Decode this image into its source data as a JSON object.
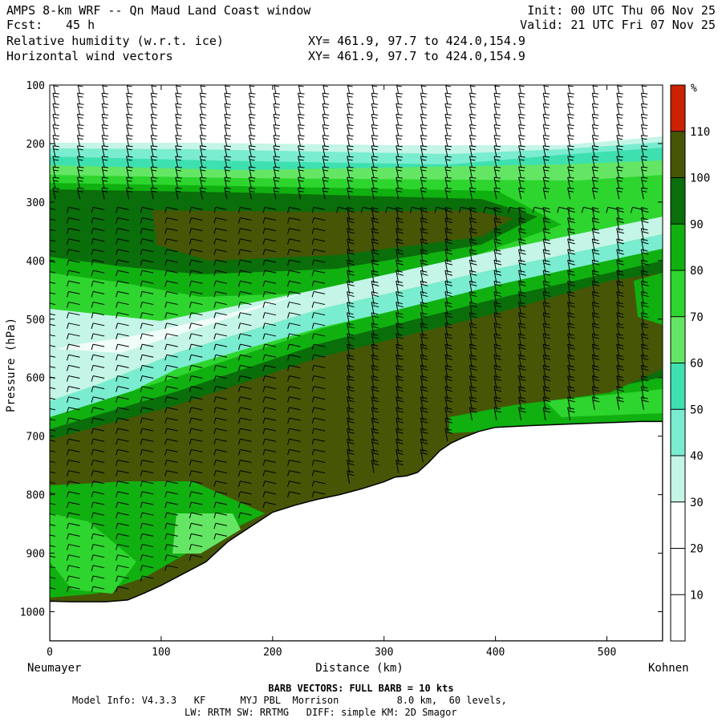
{
  "header": {
    "title": "AMPS 8-km WRF -- Qn Maud Land Coast window",
    "fcst_label": "Fcst:",
    "fcst_value": "45 h",
    "field1": "Relative humidity (w.r.t. ice)",
    "field2": "Horizontal wind vectors",
    "xy1": "XY= 461.9, 97.7 to 424.0,154.9",
    "xy2": "XY= 461.9, 97.7 to 424.0,154.9",
    "init": "Init: 00 UTC Thu 06 Nov 25",
    "valid": "Valid: 21 UTC Fri 07 Nov 25"
  },
  "chart_data": {
    "type": "heatmap",
    "title": "Relative humidity (w.r.t. ice) cross-section with horizontal wind vectors",
    "xlabel": "Distance (km)",
    "ylabel": "Pressure (hPa)",
    "xlim": [
      0,
      550
    ],
    "ylim": [
      1050,
      100
    ],
    "x_ticks": [
      0,
      100,
      200,
      300,
      400,
      500
    ],
    "y_ticks": [
      100,
      200,
      300,
      400,
      500,
      600,
      700,
      800,
      900,
      1000
    ],
    "x_tick_labels": [
      "0",
      "100",
      "200",
      "300",
      "400",
      "500"
    ],
    "y_tick_labels": [
      "100",
      "200",
      "300",
      "400",
      "500",
      "600",
      "700",
      "800",
      "900",
      "1000"
    ],
    "left_endpoint": "Neumayer",
    "right_endpoint": "Kohnen",
    "colorbar": {
      "unit": "%",
      "levels": [
        10,
        20,
        30,
        40,
        50,
        60,
        70,
        80,
        90,
        100,
        110
      ],
      "labels": [
        "10",
        "20",
        "30",
        "40",
        "50",
        "60",
        "70",
        "80",
        "90",
        "100",
        "110"
      ],
      "colors": [
        "#ffffff",
        "#ffffff",
        "#ffffff",
        "#c4f5e6",
        "#7aecd0",
        "#3ee0b0",
        "#64e664",
        "#2ed52e",
        "#10b010",
        "#0a6e0a",
        "#465606",
        "#cc2200"
      ]
    },
    "terrain_surface_hpa": [
      [
        0,
        982
      ],
      [
        20,
        983
      ],
      [
        50,
        983
      ],
      [
        70,
        980
      ],
      [
        85,
        968
      ],
      [
        100,
        955
      ],
      [
        120,
        935
      ],
      [
        140,
        915
      ],
      [
        160,
        880
      ],
      [
        180,
        855
      ],
      [
        200,
        830
      ],
      [
        220,
        818
      ],
      [
        240,
        808
      ],
      [
        260,
        800
      ],
      [
        280,
        790
      ],
      [
        300,
        778
      ],
      [
        310,
        770
      ],
      [
        320,
        768
      ],
      [
        330,
        762
      ],
      [
        340,
        745
      ],
      [
        350,
        725
      ],
      [
        360,
        712
      ],
      [
        370,
        703
      ],
      [
        385,
        692
      ],
      [
        400,
        685
      ],
      [
        430,
        682
      ],
      [
        470,
        679
      ],
      [
        500,
        677
      ],
      [
        530,
        675
      ],
      [
        550,
        675
      ]
    ],
    "barb_note": "BARB VECTORS:  FULL BARB = 10 kts"
  },
  "footer": {
    "line1": "Model Info: V4.3.3   KF      MYJ PBL  Morrison          8.0 km,  60 levels,",
    "line2": "LW: RRTM SW: RRTMG   DIFF: simple KM: 2D Smagor"
  }
}
